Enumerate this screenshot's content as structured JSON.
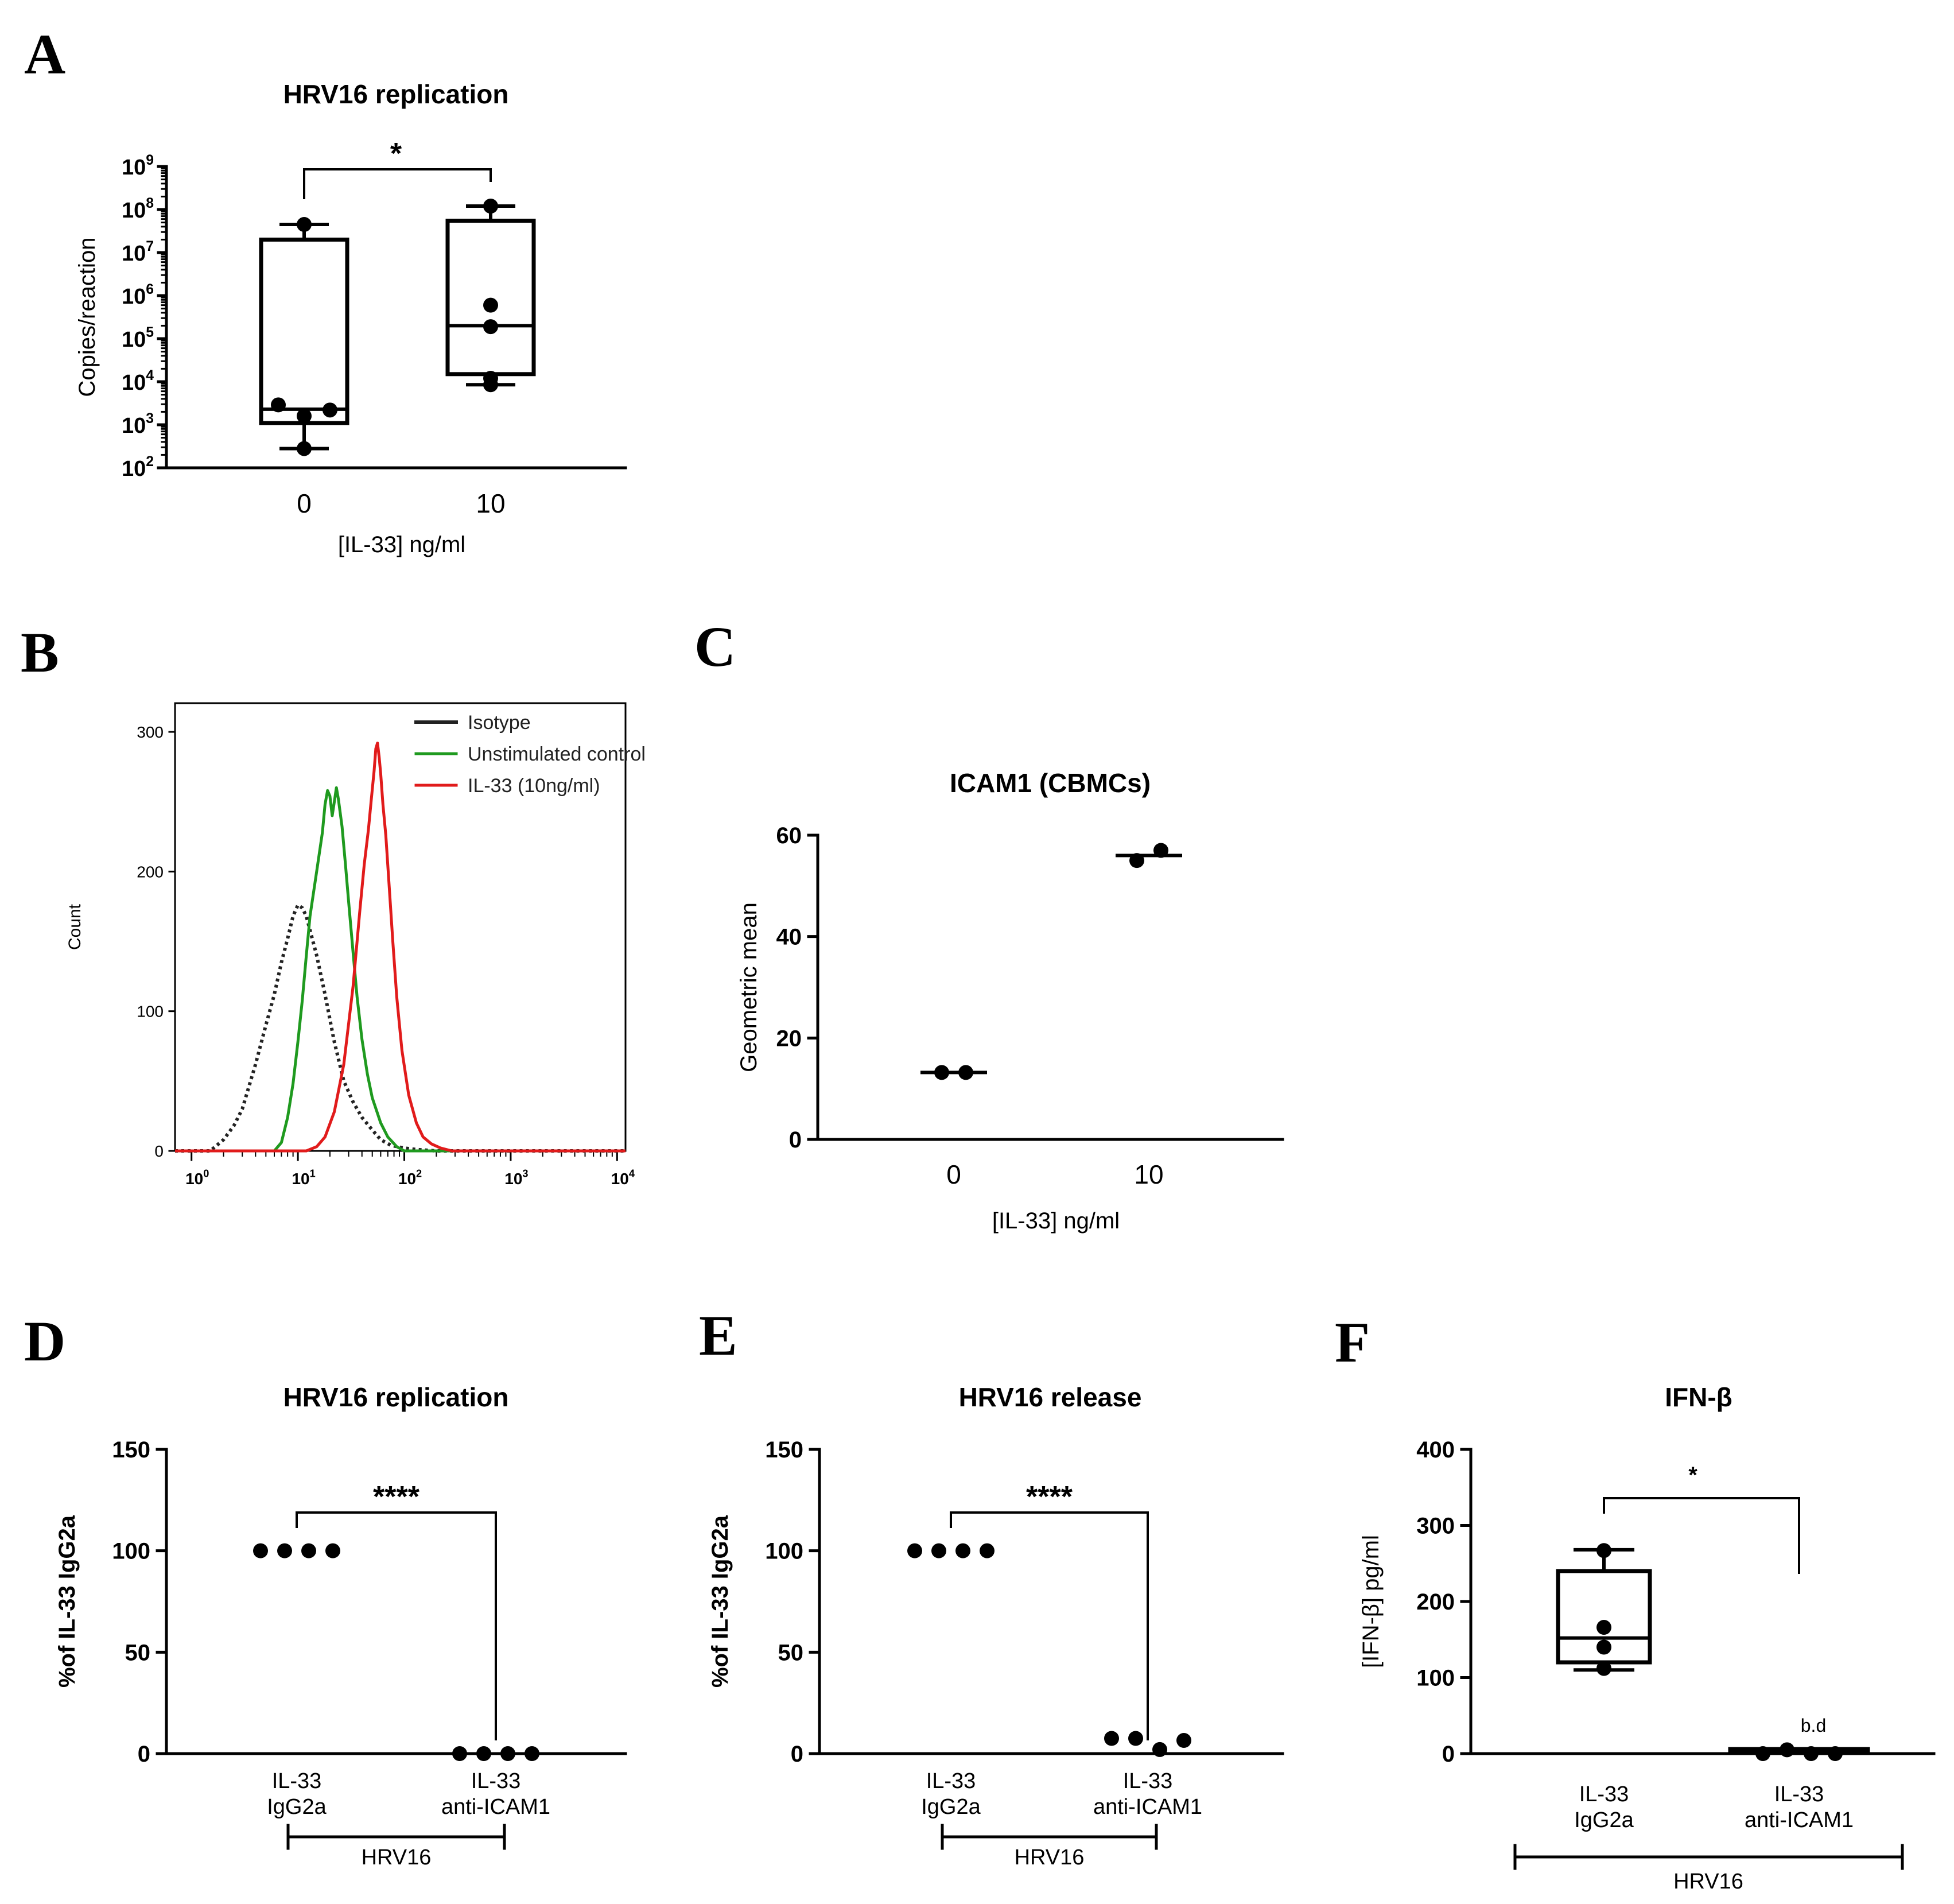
{
  "figure": {
    "panel_letters": [
      "A",
      "B",
      "C",
      "D",
      "E",
      "F"
    ]
  },
  "chart_data": [
    {
      "id": "A",
      "type": "box",
      "title": "HRV16 replication",
      "xlabel": "[IL-33] ng/ml",
      "ylabel": "Copies/reaction",
      "yscale": "log",
      "ylim": [
        100,
        1000000000
      ],
      "yticks": [
        {
          "value": 100,
          "base": "10",
          "exp": "2"
        },
        {
          "value": 1000,
          "base": "10",
          "exp": "3"
        },
        {
          "value": 10000,
          "base": "10",
          "exp": "4"
        },
        {
          "value": 100000,
          "base": "10",
          "exp": "5"
        },
        {
          "value": 1000000,
          "base": "10",
          "exp": "6"
        },
        {
          "value": 10000000,
          "base": "10",
          "exp": "7"
        },
        {
          "value": 100000000,
          "base": "10",
          "exp": "8"
        },
        {
          "value": 1000000000,
          "base": "10",
          "exp": "9"
        }
      ],
      "categories": [
        "0",
        "10"
      ],
      "boxes": [
        {
          "category": "0",
          "min": 280,
          "q1": 1100,
          "median": 2300,
          "q3": 20000000,
          "max": 45000000,
          "points": [
            280,
            1600,
            2200,
            2900,
            45000000
          ]
        },
        {
          "category": "10",
          "min": 8500,
          "q1": 15000,
          "median": 200000,
          "q3": 55000000,
          "max": 120000000,
          "points": [
            8500,
            12000,
            190000,
            600000,
            120000000
          ]
        }
      ],
      "significance": {
        "from": "0",
        "to": "10",
        "label": "*"
      }
    },
    {
      "id": "B",
      "type": "line",
      "xlabel": "",
      "ylabel": "Count",
      "xscale": "log",
      "xlim": [
        0.7,
        12000
      ],
      "ylim": [
        0,
        300
      ],
      "yticks": [
        0,
        100,
        200,
        300
      ],
      "xticks": [
        {
          "value": 1,
          "base": "10",
          "exp": "0"
        },
        {
          "value": 10,
          "base": "10",
          "exp": "1"
        },
        {
          "value": 100,
          "base": "10",
          "exp": "2"
        },
        {
          "value": 1000,
          "base": "10",
          "exp": "3"
        },
        {
          "value": 10000,
          "base": "10",
          "exp": "4"
        }
      ],
      "series": [
        {
          "name": "Isotype",
          "color": "#222222",
          "dashed": true,
          "x": [
            0.7,
            1.5,
            2,
            2.5,
            3,
            4,
            5,
            6,
            7,
            8,
            9,
            10,
            11,
            12,
            13,
            15,
            18,
            22,
            27,
            33,
            40,
            50,
            60,
            75,
            100,
            130,
            200,
            12000
          ],
          "y": [
            0,
            0,
            8,
            18,
            30,
            62,
            90,
            112,
            135,
            152,
            168,
            176,
            174,
            168,
            158,
            140,
            112,
            78,
            50,
            35,
            24,
            15,
            8,
            4,
            2,
            1,
            0,
            0
          ]
        },
        {
          "name": "Unstimulated control",
          "color": "#1f9a1f",
          "dashed": false,
          "x": [
            0.7,
            6,
            7,
            8,
            9,
            10,
            11,
            12,
            13,
            15,
            17,
            18,
            19,
            20,
            21,
            22,
            23,
            24,
            26,
            28,
            30,
            33,
            36,
            40,
            45,
            50,
            60,
            70,
            85,
            100,
            12000
          ],
          "y": [
            0,
            0,
            6,
            24,
            48,
            78,
            108,
            140,
            168,
            200,
            228,
            248,
            258,
            254,
            240,
            250,
            260,
            252,
            232,
            205,
            178,
            142,
            110,
            80,
            55,
            38,
            20,
            10,
            3,
            0,
            0
          ]
        },
        {
          "name": "IL-33 (10ng/ml)",
          "color": "#e11b1b",
          "dashed": false,
          "x": [
            0.7,
            12,
            15,
            18,
            22,
            27,
            33,
            38,
            42,
            46,
            49,
            52,
            54,
            56,
            58,
            60,
            63,
            67,
            72,
            78,
            85,
            95,
            110,
            130,
            150,
            180,
            220,
            280,
            12000
          ],
          "y": [
            0,
            0,
            3,
            10,
            28,
            62,
            118,
            170,
            205,
            230,
            252,
            272,
            288,
            292,
            282,
            270,
            248,
            226,
            190,
            150,
            110,
            72,
            40,
            20,
            10,
            5,
            2,
            0,
            0
          ]
        }
      ],
      "legend": "top-right"
    },
    {
      "id": "C",
      "type": "scatter",
      "title": "ICAM1 (CBMCs)",
      "xlabel": "[IL-33] ng/ml",
      "ylabel": "Geometric mean",
      "ylim": [
        0,
        60
      ],
      "yticks": [
        0,
        20,
        40,
        60
      ],
      "categories": [
        "0",
        "10"
      ],
      "groups": [
        {
          "category": "0",
          "points": [
            13.2,
            13.2
          ],
          "mean": 13.2
        },
        {
          "category": "10",
          "points": [
            55,
            57
          ],
          "mean": 56
        }
      ]
    },
    {
      "id": "D",
      "type": "scatter",
      "title": "HRV16 replication",
      "ylabel": "%of IL-33 IgG2a",
      "ylim": [
        0,
        150
      ],
      "yticks": [
        0,
        50,
        100,
        150
      ],
      "categories": [
        [
          "IL-33",
          "IgG2a"
        ],
        [
          "IL-33",
          "anti-ICAM1"
        ]
      ],
      "groups": [
        {
          "points": [
            100,
            100,
            100,
            100
          ]
        },
        {
          "points": [
            0,
            0,
            0,
            0
          ]
        }
      ],
      "group_bracket": "HRV16",
      "significance": {
        "from": 0,
        "to": 1,
        "label": "****"
      }
    },
    {
      "id": "E",
      "type": "scatter",
      "title": "HRV16 release",
      "ylabel": "%of IL-33 IgG2a",
      "ylim": [
        0,
        150
      ],
      "yticks": [
        0,
        50,
        100,
        150
      ],
      "categories": [
        [
          "IL-33",
          "IgG2a"
        ],
        [
          "IL-33",
          "anti-ICAM1"
        ]
      ],
      "groups": [
        {
          "points": [
            100,
            100,
            100,
            100
          ]
        },
        {
          "points": [
            7.5,
            7.5,
            2,
            6.5
          ]
        }
      ],
      "group_bracket": "HRV16",
      "significance": {
        "from": 0,
        "to": 1,
        "label": "****"
      }
    },
    {
      "id": "F",
      "type": "box",
      "title": "IFN-β",
      "ylabel": "[IFN-β] pg/ml",
      "ylim": [
        0,
        400
      ],
      "yticks": [
        0,
        100,
        200,
        300,
        400
      ],
      "categories": [
        [
          "IL-33",
          "IgG2a"
        ],
        [
          "IL-33",
          "anti-ICAM1"
        ]
      ],
      "boxes": [
        {
          "min": 110,
          "q1": 120,
          "median": 152,
          "q3": 240,
          "max": 268,
          "points": [
            112,
            140,
            166,
            267
          ]
        },
        {
          "min": 0,
          "q1": 2,
          "median": 4,
          "q3": 6,
          "max": 8,
          "points": [
            0,
            5,
            0,
            0
          ]
        }
      ],
      "annotation": "b.d",
      "group_bracket": "HRV16",
      "significance": {
        "from": 0,
        "to": 1,
        "label": "*"
      }
    }
  ]
}
